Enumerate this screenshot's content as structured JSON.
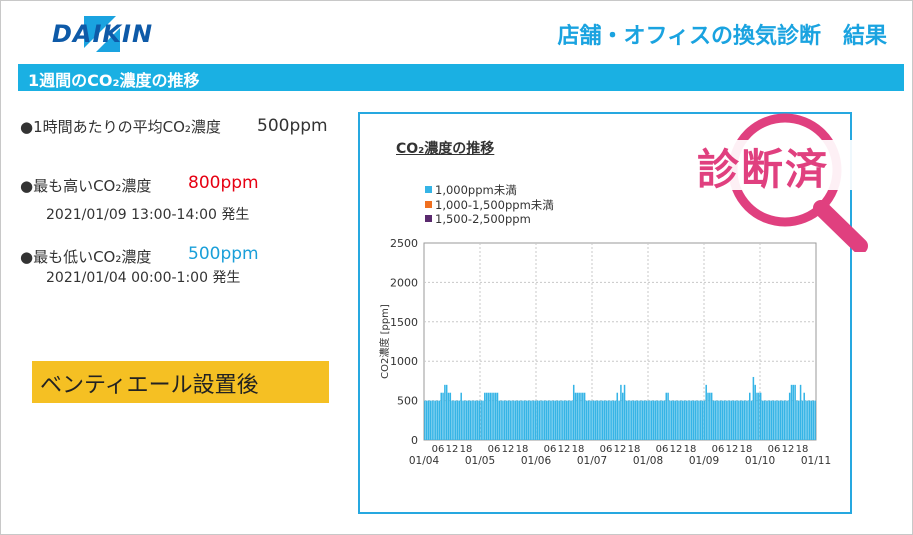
{
  "header": {
    "brand": "DAIKIN",
    "title": "店舗・オフィスの換気診断　結果"
  },
  "banner": {
    "label": "1週間のCO₂濃度の推移"
  },
  "stats": {
    "avg_label": "●1時間あたりの平均CO₂濃度",
    "avg_value": "500ppm",
    "max_label": "●最も高いCO₂濃度",
    "max_value": "800ppm",
    "max_time": "2021/01/09 13:00-14:00 発生",
    "min_label": "●最も低いCO₂濃度",
    "min_value": "500ppm",
    "min_time": "2021/01/04 00:00-1:00 発生"
  },
  "callout": {
    "label": "ベンティエール設置後"
  },
  "stamp": {
    "label": "診断済"
  },
  "colors": {
    "accent": "#1ab0e3",
    "bar": "#35b4e6",
    "max_value": "#e60012",
    "min_value": "#1a9fd9",
    "stamp": "#e0407f",
    "brand": "#0e5aa8",
    "callout": "#f5c023"
  },
  "chart_data": {
    "type": "bar",
    "title": "CO₂濃度の推移",
    "ylabel": "CO2濃度 [ppm]",
    "ylim": [
      0,
      2500
    ],
    "yticks": [
      0,
      500,
      1000,
      1500,
      2000,
      2500
    ],
    "legend": [
      {
        "name": "1,000ppm未満",
        "color": "#35b4e6"
      },
      {
        "name": "1,000-1,500ppm未満",
        "color": "#f07020"
      },
      {
        "name": "1,500-2,500ppm",
        "color": "#5a2a6e"
      }
    ],
    "hour_tick_labels": [
      "06",
      "12",
      "18"
    ],
    "day_labels": [
      "01/04",
      "01/05",
      "01/06",
      "01/07",
      "01/08",
      "01/09",
      "01/10",
      "01/11"
    ],
    "hour_start": "2021/01/04 00:00",
    "values": [
      500,
      500,
      500,
      500,
      500,
      500,
      500,
      500,
      500,
      600,
      600,
      700,
      700,
      600,
      600,
      500,
      500,
      500,
      500,
      500,
      600,
      500,
      500,
      500,
      500,
      500,
      500,
      500,
      500,
      500,
      500,
      500,
      500,
      600,
      600,
      600,
      600,
      600,
      600,
      600,
      600,
      500,
      500,
      500,
      500,
      500,
      500,
      500,
      500,
      500,
      500,
      500,
      500,
      500,
      500,
      500,
      500,
      500,
      500,
      500,
      500,
      500,
      500,
      500,
      500,
      500,
      500,
      500,
      500,
      500,
      500,
      500,
      500,
      500,
      500,
      500,
      500,
      500,
      500,
      500,
      500,
      500,
      700,
      600,
      600,
      600,
      600,
      600,
      600,
      500,
      500,
      500,
      500,
      500,
      500,
      500,
      500,
      500,
      500,
      500,
      500,
      500,
      500,
      500,
      500,
      500,
      600,
      500,
      700,
      600,
      700,
      500,
      500,
      500,
      500,
      500,
      500,
      500,
      500,
      500,
      500,
      500,
      500,
      500,
      500,
      500,
      500,
      500,
      500,
      500,
      500,
      500,
      500,
      600,
      600,
      500,
      500,
      500,
      500,
      500,
      500,
      500,
      500,
      500,
      500,
      500,
      500,
      500,
      500,
      500,
      500,
      500,
      500,
      500,
      500,
      700,
      600,
      600,
      600,
      500,
      500,
      500,
      500,
      500,
      500,
      500,
      500,
      500,
      500,
      500,
      500,
      500,
      500,
      500,
      500,
      500,
      500,
      500,
      500,
      600,
      500,
      800,
      700,
      600,
      600,
      600,
      500,
      500,
      500,
      500,
      500,
      500,
      500,
      500,
      500,
      500,
      500,
      500,
      500,
      500,
      500,
      600,
      700,
      700,
      700,
      500,
      500,
      700,
      500,
      600,
      500,
      500,
      500,
      500,
      500,
      500
    ]
  }
}
